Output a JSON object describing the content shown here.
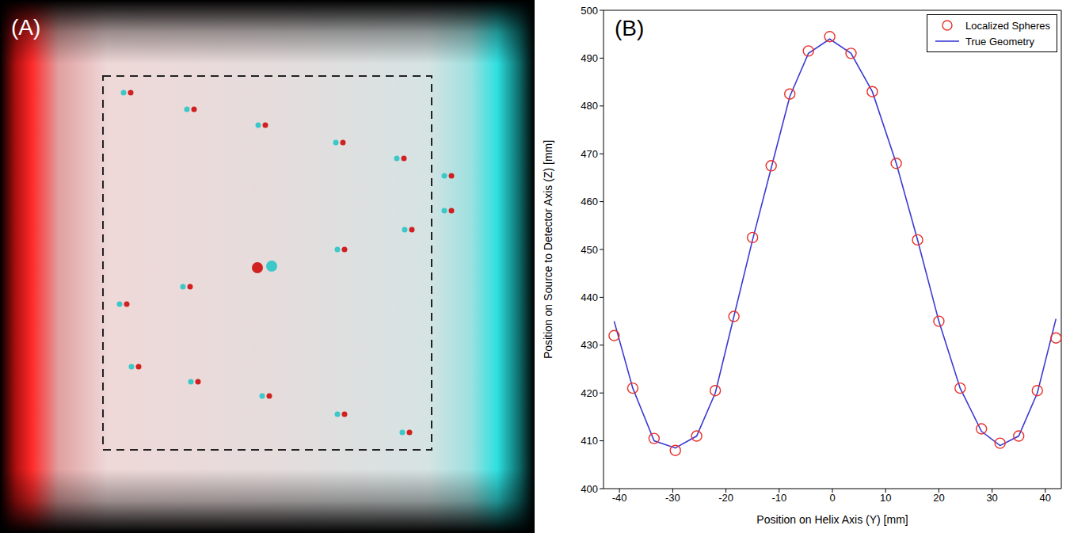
{
  "panel_a": {
    "label": "(A)"
  },
  "chart_data": {
    "type": "scatter",
    "panel_label": "(B)",
    "x_label": "Position on Helix Axis (Y) [mm]",
    "y_label": "Position on Source to Detector Axis (Z) [mm]",
    "xlim": [
      -43,
      43
    ],
    "xticks": [
      -40,
      -30,
      -20,
      -10,
      0,
      10,
      20,
      30,
      40
    ],
    "ylim": [
      400,
      500
    ],
    "yticks": [
      400,
      410,
      420,
      430,
      440,
      450,
      460,
      470,
      480,
      490,
      500
    ],
    "grid": false,
    "legend": "upper right",
    "series": [
      {
        "name": "Localized Spheres",
        "type": "scatter",
        "color": "#e8312a",
        "marker": "circle",
        "x": [
          -41,
          -37.5,
          -33.5,
          -29.5,
          -25.5,
          -22,
          -18.5,
          -15,
          -11.5,
          -8,
          -4.5,
          -0.5,
          3.5,
          7.5,
          12,
          16,
          20,
          24,
          28,
          31.5,
          35,
          38.5,
          42
        ],
        "values": [
          432,
          421,
          410.5,
          408,
          411,
          420.5,
          436,
          452.5,
          467.5,
          482.5,
          491.5,
          494.5,
          491,
          483,
          468,
          452,
          435,
          421,
          412.5,
          409.5,
          411,
          420.5,
          431.5
        ]
      },
      {
        "name": "True Geometry",
        "type": "line",
        "color": "#3b3bd4",
        "line_style": "solid",
        "x": [
          -41,
          -37.5,
          -33.5,
          -29.5,
          -25.5,
          -22,
          -18.5,
          -15,
          -11.5,
          -8,
          -4.5,
          -0.5,
          3.5,
          7.5,
          12,
          16,
          20,
          24,
          28,
          31.5,
          35,
          38.5,
          42
        ],
        "values": [
          435,
          421,
          410,
          408.5,
          411,
          420,
          436,
          452,
          467,
          482,
          491,
          494,
          491,
          483,
          468,
          452,
          435,
          421,
          412,
          409,
          411,
          420,
          435.5
        ]
      }
    ]
  }
}
